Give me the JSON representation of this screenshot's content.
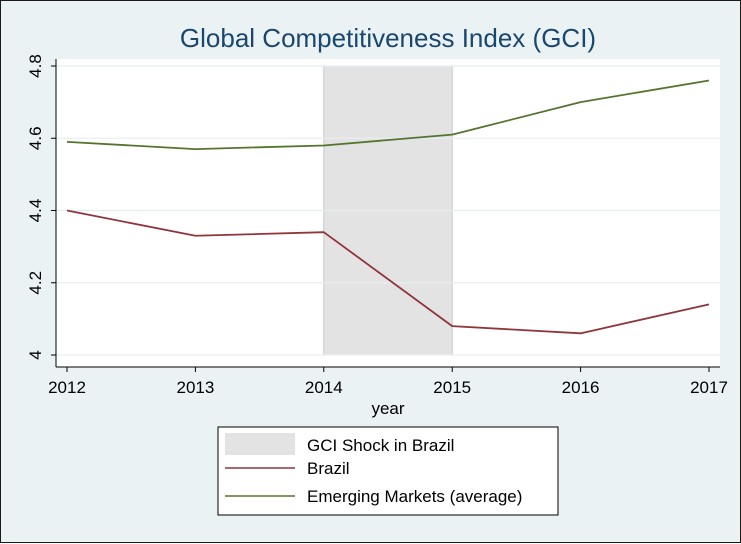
{
  "chart_data": {
    "type": "line",
    "title": "Global Competitiveness Index (GCI)",
    "xlabel": "year",
    "ylabel": "",
    "x": [
      2012,
      2013,
      2014,
      2015,
      2016,
      2017
    ],
    "xlim": [
      2012,
      2017
    ],
    "ylim": [
      4.0,
      4.8
    ],
    "yticks": [
      4,
      4.2,
      4.4,
      4.6,
      4.8
    ],
    "yticklabels": [
      "4",
      "4.2",
      "4.4",
      "4.6",
      "4.8"
    ],
    "xticklabels": [
      "2012",
      "2013",
      "2014",
      "2015",
      "2016",
      "2017"
    ],
    "grid": true,
    "legend_position": "bottom",
    "shaded_region": {
      "name": "GCI Shock in Brazil",
      "x_start": 2014,
      "x_end": 2015,
      "color": "#e3e3e3"
    },
    "series": [
      {
        "name": "Brazil",
        "color": "#90353b",
        "values": [
          4.4,
          4.33,
          4.34,
          4.08,
          4.06,
          4.14
        ]
      },
      {
        "name": "Emerging Markets (average)",
        "color": "#55752f",
        "values": [
          4.59,
          4.57,
          4.58,
          4.61,
          4.7,
          4.76
        ]
      }
    ]
  }
}
